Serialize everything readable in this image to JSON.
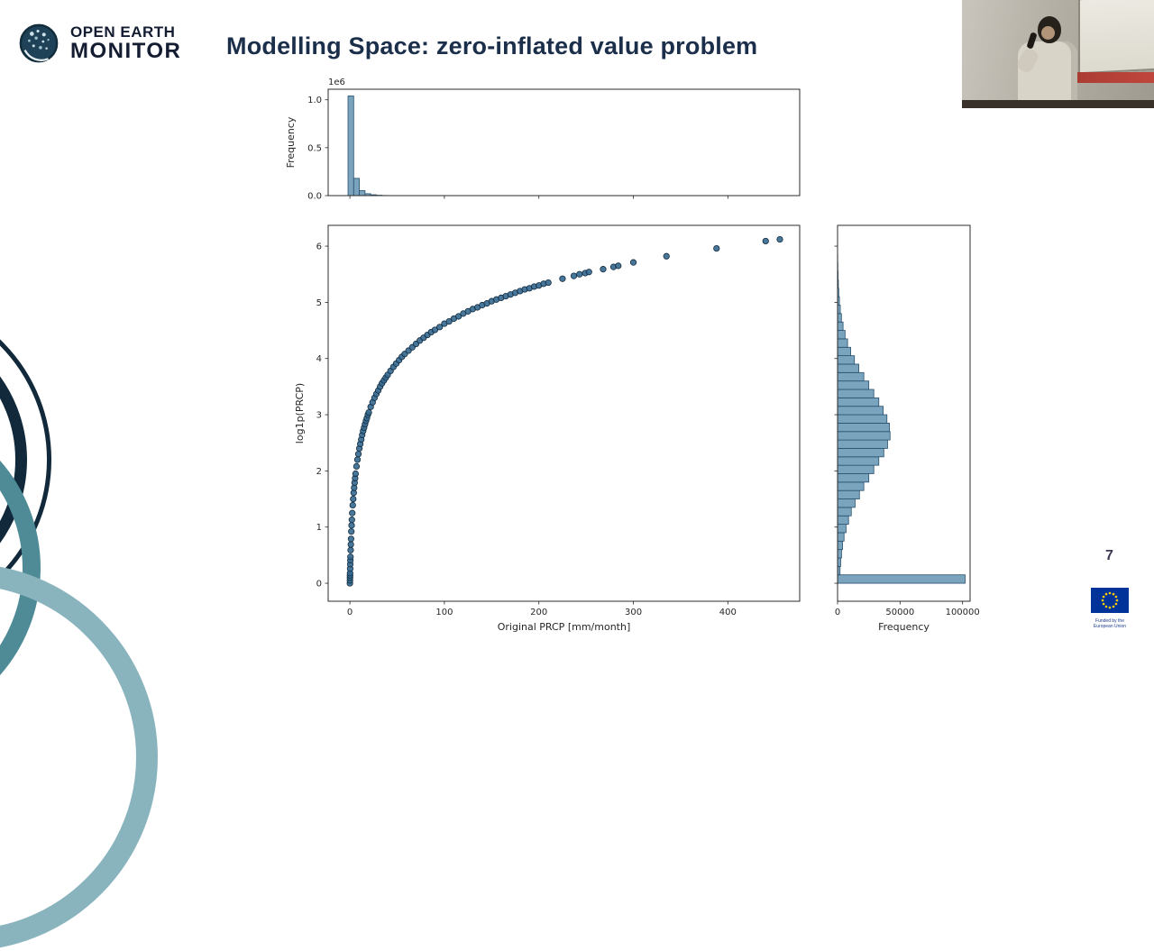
{
  "slide": {
    "logo": {
      "line1": "OPEN EARTH",
      "line2": "MONITOR"
    },
    "title": "Modelling Space: zero-inflated value problem",
    "page_number": "7",
    "eu_caption": "Funded by the European Union"
  },
  "colors": {
    "title": "#1b2f4b",
    "navy_arc": "#11293a",
    "teal_arc": "#4e8b97",
    "light_teal_arc": "#8ab4bd",
    "bar_fill": "#7aa3bd",
    "bar_edge": "#27506e",
    "marker_fill": "#35688f",
    "marker_edge": "#102b40",
    "axis": "#2b2b2b",
    "tick_text": "#262626",
    "eu_blue": "#003399",
    "eu_yellow": "#ffcc00"
  },
  "chart_data": [
    {
      "id": "top-histogram",
      "type": "bar",
      "orientation": "vertical",
      "ylabel": "Frequency",
      "offset_text": "1e6",
      "xlim": [
        -23,
        476
      ],
      "ylim": [
        0,
        1110000
      ],
      "xticks": [
        0,
        100,
        200,
        300,
        400
      ],
      "yticks": [
        0,
        500000,
        1000000
      ],
      "ytick_labels": [
        "0.0",
        "0.5",
        "1.0"
      ],
      "grid": false,
      "bin_width": 6,
      "bin_centers": [
        1,
        7,
        13,
        19,
        25,
        31,
        37
      ],
      "values": [
        1040000,
        180000,
        52000,
        20000,
        9000,
        4000,
        1500
      ]
    },
    {
      "id": "scatter",
      "type": "scatter",
      "xlabel": "Original PRCP [mm/month]",
      "ylabel": "log1p(PRCP)",
      "xlim": [
        -23,
        476
      ],
      "ylim": [
        -0.32,
        6.37
      ],
      "xticks": [
        0,
        100,
        200,
        300,
        400
      ],
      "xtick_labels": [
        "0",
        "100",
        "200",
        "300",
        "400"
      ],
      "yticks": [
        0,
        1,
        2,
        3,
        4,
        5,
        6
      ],
      "ytick_labels": [
        "0",
        "1",
        "2",
        "3",
        "4",
        "5",
        "6"
      ],
      "grid": false,
      "x": [
        0,
        0.05,
        0.1,
        0.15,
        0.2,
        0.3,
        0.4,
        0.5,
        0.6,
        0.8,
        1,
        1.2,
        1.5,
        1.8,
        2.1,
        2.5,
        3,
        3.5,
        4,
        4.5,
        5,
        5.5,
        6,
        7,
        8,
        9,
        10,
        11,
        12,
        13,
        14,
        15,
        16,
        17,
        18,
        19,
        20,
        22,
        24,
        26,
        28,
        30,
        32,
        34,
        36,
        38,
        40,
        43,
        46,
        49,
        52,
        55,
        58,
        62,
        66,
        70,
        74,
        78,
        82,
        86,
        90,
        95,
        100,
        105,
        110,
        115,
        120,
        125,
        130,
        135,
        140,
        145,
        150,
        155,
        160,
        165,
        170,
        175,
        180,
        185,
        190,
        195,
        200,
        205,
        210,
        225,
        237,
        243,
        249,
        253,
        268,
        279,
        284,
        300,
        335,
        388,
        440,
        455
      ],
      "y": [
        0,
        0.05,
        0.1,
        0.14,
        0.18,
        0.26,
        0.34,
        0.41,
        0.47,
        0.59,
        0.69,
        0.79,
        0.92,
        1.03,
        1.13,
        1.25,
        1.39,
        1.5,
        1.61,
        1.7,
        1.79,
        1.87,
        1.95,
        2.08,
        2.2,
        2.3,
        2.4,
        2.48,
        2.56,
        2.64,
        2.71,
        2.77,
        2.83,
        2.89,
        2.94,
        3,
        3.04,
        3.14,
        3.22,
        3.3,
        3.37,
        3.43,
        3.5,
        3.56,
        3.61,
        3.66,
        3.71,
        3.78,
        3.85,
        3.91,
        3.97,
        4.03,
        4.08,
        4.14,
        4.2,
        4.26,
        4.32,
        4.37,
        4.42,
        4.47,
        4.51,
        4.56,
        4.62,
        4.66,
        4.71,
        4.75,
        4.8,
        4.84,
        4.88,
        4.91,
        4.95,
        4.98,
        5.02,
        5.05,
        5.08,
        5.11,
        5.14,
        5.17,
        5.2,
        5.23,
        5.25,
        5.28,
        5.3,
        5.33,
        5.35,
        5.42,
        5.47,
        5.5,
        5.52,
        5.54,
        5.59,
        5.63,
        5.65,
        5.71,
        5.82,
        5.96,
        6.09,
        6.12
      ]
    },
    {
      "id": "right-histogram",
      "type": "bar",
      "orientation": "horizontal",
      "xlabel": "Frequency",
      "xlim": [
        0,
        106000
      ],
      "ylim": [
        -0.32,
        6.37
      ],
      "xticks": [
        0,
        50000,
        100000
      ],
      "xtick_labels": [
        "0",
        "50000",
        "100000"
      ],
      "yticks": [
        0,
        1,
        2,
        3,
        4,
        5,
        6
      ],
      "grid": false,
      "bin_height": 0.15,
      "bin_centers": [
        0.075,
        0.225,
        0.375,
        0.525,
        0.675,
        0.825,
        0.975,
        1.125,
        1.275,
        1.425,
        1.575,
        1.725,
        1.875,
        2.025,
        2.175,
        2.325,
        2.475,
        2.625,
        2.775,
        2.925,
        3.075,
        3.225,
        3.375,
        3.525,
        3.675,
        3.825,
        3.975,
        4.125,
        4.275,
        4.425,
        4.575,
        4.725,
        4.875,
        5.025,
        5.175,
        5.325,
        5.475,
        5.625,
        5.775,
        5.925
      ],
      "values": [
        102000,
        2000,
        2500,
        3200,
        4000,
        5200,
        6800,
        8800,
        11000,
        14000,
        17500,
        21000,
        25000,
        29000,
        33000,
        37000,
        40000,
        42000,
        41500,
        39500,
        36500,
        33000,
        29000,
        25000,
        21000,
        17000,
        13500,
        10500,
        8000,
        6000,
        4400,
        3100,
        2200,
        1500,
        1000,
        650,
        400,
        240,
        130,
        60
      ]
    }
  ]
}
